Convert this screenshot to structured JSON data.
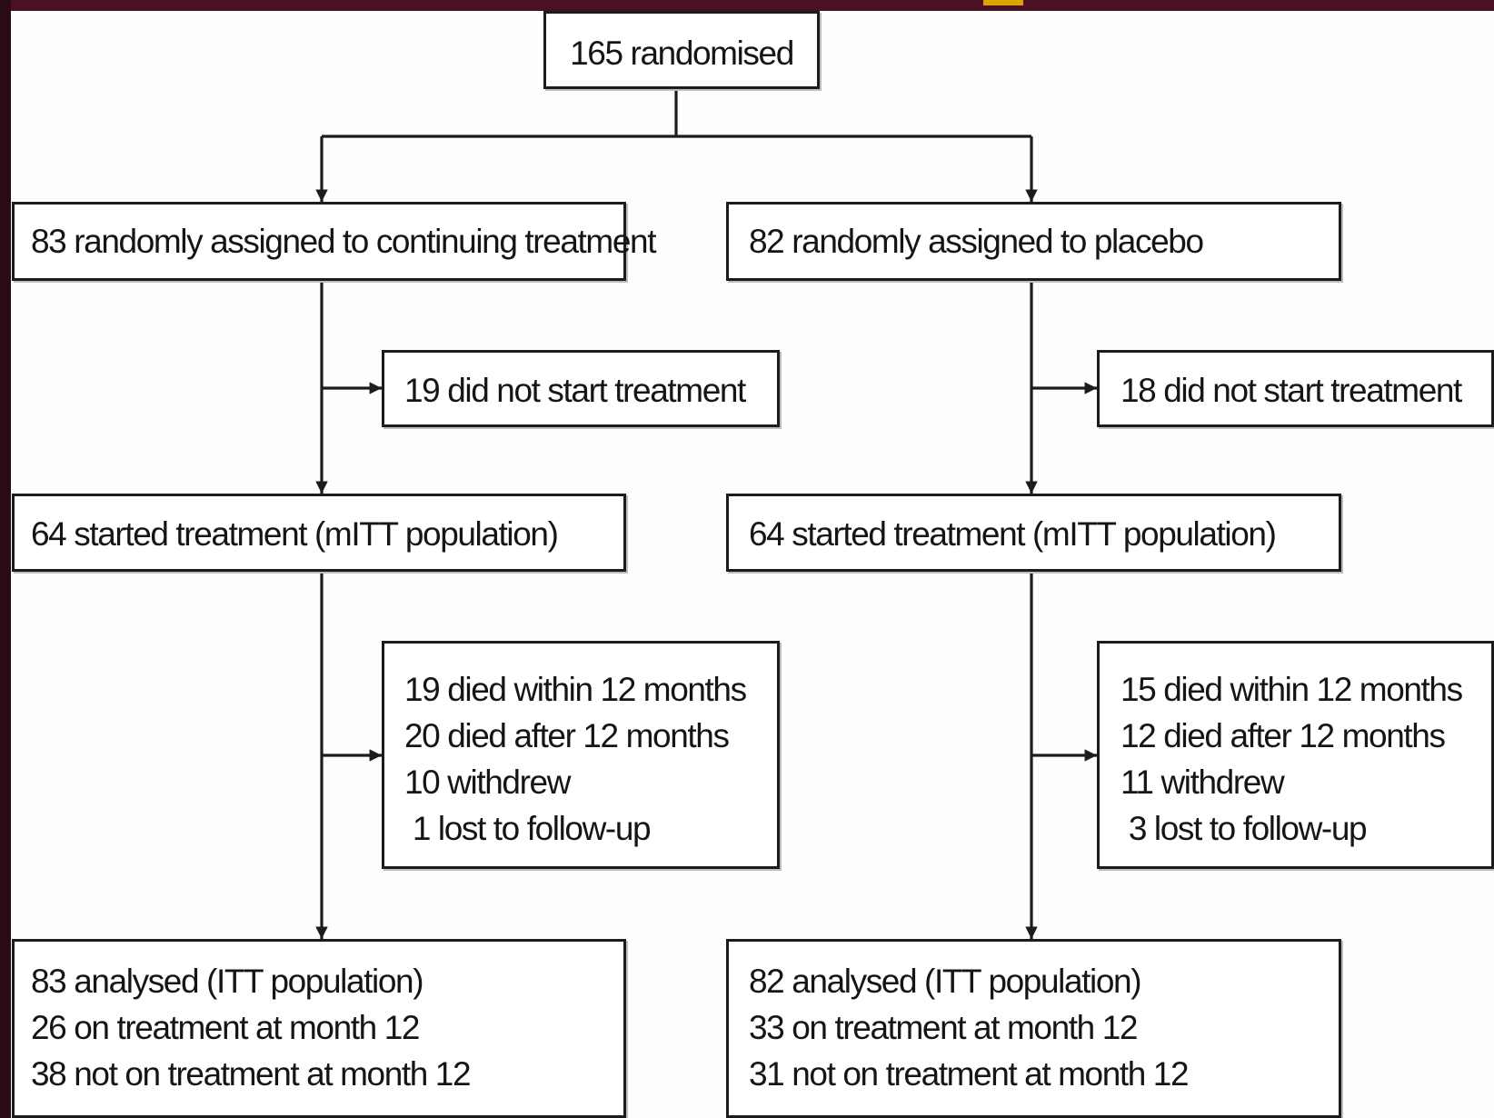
{
  "flowchart": {
    "randomised": "165 randomised",
    "left": {
      "assigned": "83 randomly assigned to continuing treatment",
      "not_started": "19 did not start treatment",
      "started": "64 started treatment (mITT population)",
      "outcomes": [
        "19 died within 12 months",
        "20 died after 12 months",
        "10 withdrew",
        " 1 lost to follow-up"
      ],
      "analysed": [
        "83 analysed (ITT population)",
        "26 on treatment at month 12",
        "38 not on treatment at month 12"
      ]
    },
    "right": {
      "assigned": "82 randomly assigned to placebo",
      "not_started": "18 did not start treatment",
      "started": "64 started treatment (mITT population)",
      "outcomes": [
        "15 died within 12 months",
        "12 died after 12 months",
        "11 withdrew",
        " 3 lost to follow-up"
      ],
      "analysed": [
        "82 analysed (ITT population)",
        "33 on treatment at month 12",
        "31 not on treatment at month 12"
      ]
    }
  },
  "colors": {
    "frame": "#3d0d1c",
    "box_border": "#1c1c1c",
    "text": "#151515"
  }
}
